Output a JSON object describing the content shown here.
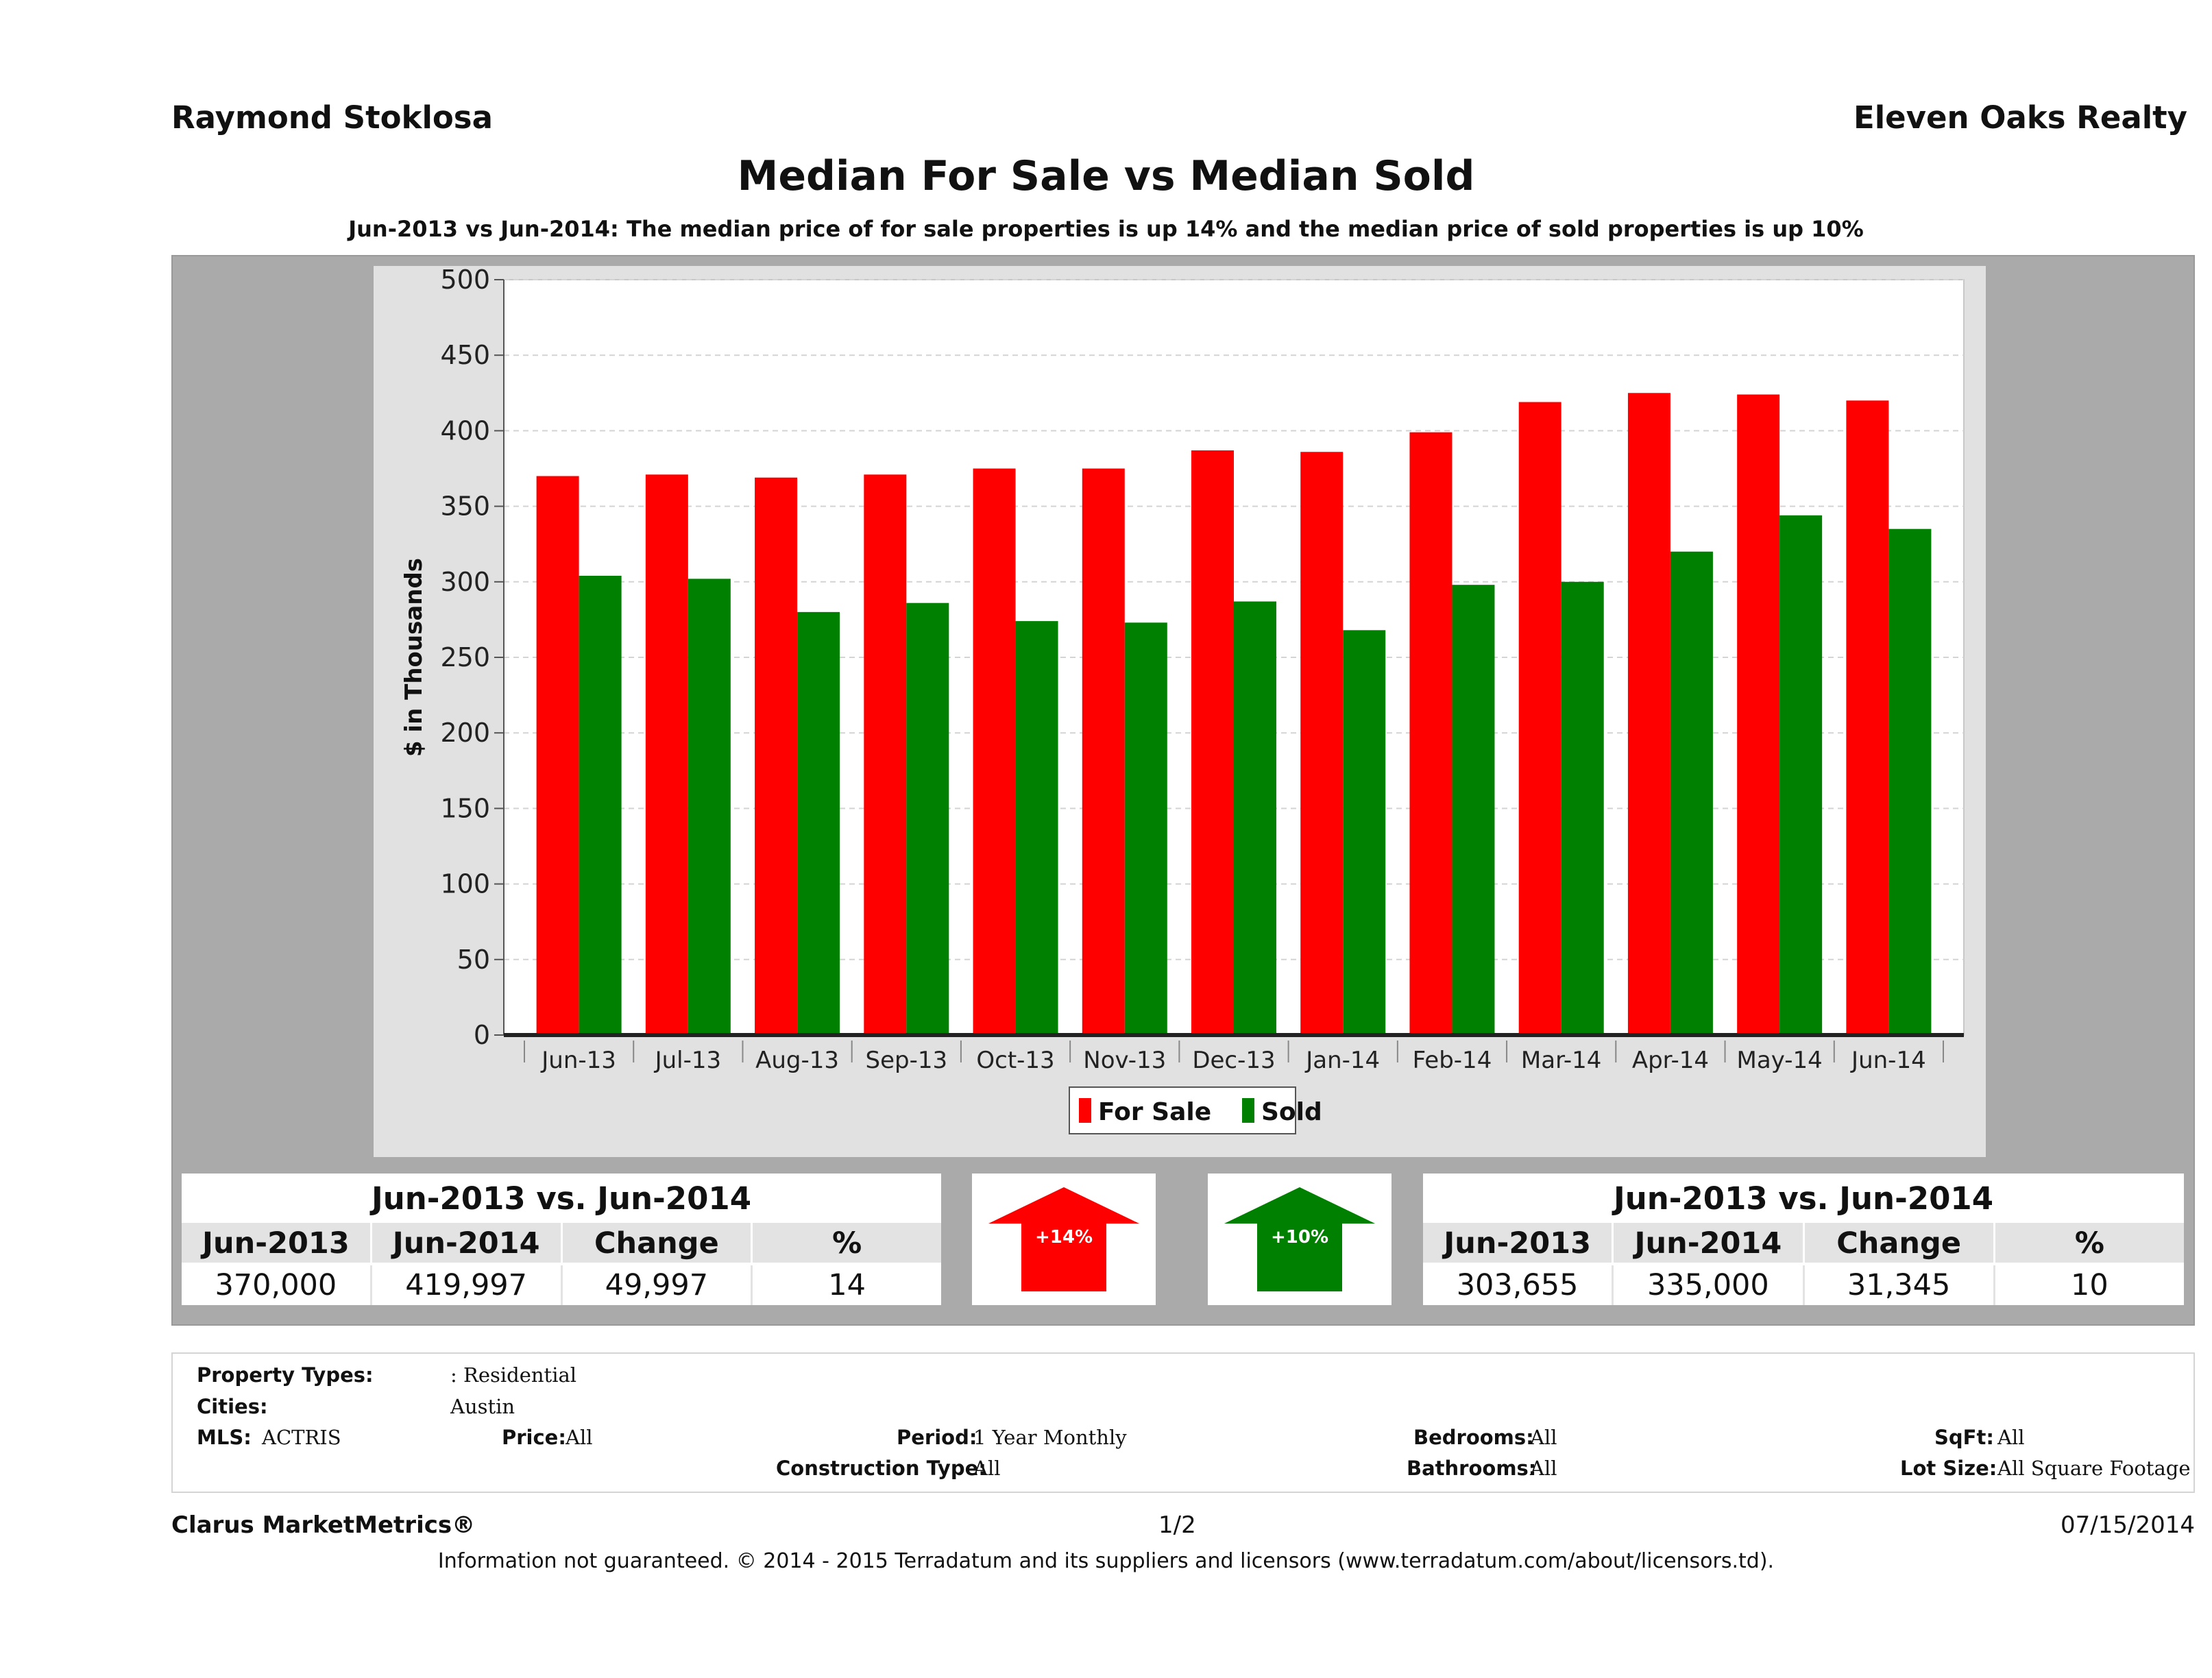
{
  "header": {
    "agent": "Raymond Stoklosa",
    "brand": "Eleven Oaks Realty",
    "title": "Median For Sale vs Median Sold",
    "subtitle": "Jun-2013 vs Jun-2014: The median price of for sale properties is up 14% and the median price of sold properties is up 10%"
  },
  "chart_data": {
    "type": "bar",
    "title": "Median For Sale vs Median Sold",
    "ylabel": "$ in Thousands",
    "xlabel": "",
    "ylim": [
      0,
      500
    ],
    "yticks": [
      0,
      50,
      100,
      150,
      200,
      250,
      300,
      350,
      400,
      450,
      500
    ],
    "grid": true,
    "legend_position": "bottom-center",
    "categories": [
      "Jun-13",
      "Jul-13",
      "Aug-13",
      "Sep-13",
      "Oct-13",
      "Nov-13",
      "Dec-13",
      "Jan-14",
      "Feb-14",
      "Mar-14",
      "Apr-14",
      "May-14",
      "Jun-14"
    ],
    "series": [
      {
        "name": "For Sale",
        "color": "#ff0000",
        "values": [
          370,
          371,
          369,
          371,
          375,
          375,
          387,
          386,
          399,
          419,
          425,
          424,
          420
        ]
      },
      {
        "name": "Sold",
        "color": "#008000",
        "values": [
          304,
          302,
          280,
          286,
          274,
          273,
          287,
          268,
          298,
          300,
          320,
          344,
          335
        ]
      }
    ]
  },
  "stats_for_sale": {
    "heading": "Jun-2013 vs. Jun-2014",
    "columns": [
      "Jun-2013",
      "Jun-2014",
      "Change",
      "%"
    ],
    "values": [
      "370,000",
      "419,997",
      "49,997",
      "14"
    ]
  },
  "arrow_for_sale": {
    "label": "+14%",
    "color": "#ff0000"
  },
  "arrow_sold": {
    "label": "+10%",
    "color": "#008000"
  },
  "stats_sold": {
    "heading": "Jun-2013 vs. Jun-2014",
    "columns": [
      "Jun-2013",
      "Jun-2014",
      "Change",
      "%"
    ],
    "values": [
      "303,655",
      "335,000",
      "31,345",
      "10"
    ]
  },
  "criteria": {
    "property_types_label": "Property Types:",
    "property_types_value": ": Residential",
    "cities_label": "Cities:",
    "cities_value": "Austin",
    "mls_label": "MLS:",
    "mls_value": "ACTRIS",
    "price_label": "Price:",
    "price_value": "All",
    "period_label": "Period:",
    "period_value": "1 Year Monthly",
    "construction_label": "Construction Type:",
    "construction_value": "All",
    "bedrooms_label": "Bedrooms:",
    "bedrooms_value": "All",
    "bathrooms_label": "Bathrooms:",
    "bathrooms_value": "All",
    "sqft_label": "SqFt:",
    "sqft_value": "All",
    "lotsize_label": "Lot Size:",
    "lotsize_value": "All Square Footage"
  },
  "footer": {
    "product": "Clarus MarketMetrics®",
    "page": "1/2",
    "date": "07/15/2014",
    "disclaimer": "Information not guaranteed. © 2014 - 2015 Terradatum and its suppliers and licensors (www.terradatum.com/about/licensors.td)."
  }
}
